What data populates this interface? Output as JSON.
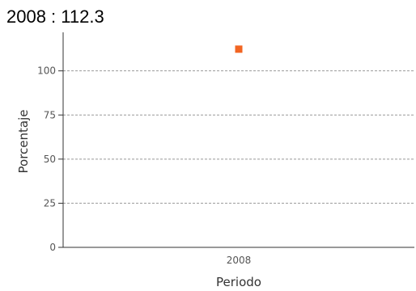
{
  "header": {
    "title": "2008 : 112.3"
  },
  "colors": {
    "point": "#f26522",
    "grid": "#999999",
    "axis": "#333333"
  },
  "chart_data": {
    "type": "scatter",
    "title": "2008 : 112.3",
    "xlabel": "Periodo",
    "ylabel": "Porcentaje",
    "categories": [
      "2008"
    ],
    "series": [
      {
        "values": [
          112.3
        ]
      }
    ],
    "ylim": [
      0,
      120
    ],
    "yticks": [
      0,
      25,
      50,
      75,
      100
    ],
    "grid": true,
    "legend": "none"
  }
}
